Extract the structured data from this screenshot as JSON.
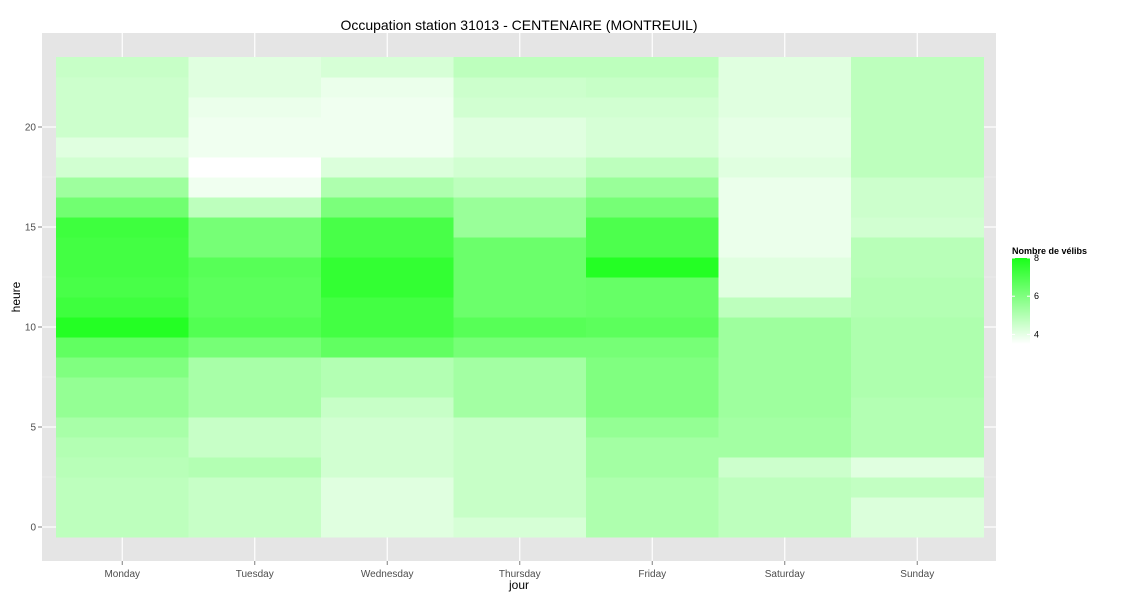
{
  "chart_data": {
    "type": "heatmap",
    "title": "Occupation station 31013 - CENTENAIRE (MONTREUIL)",
    "xlabel": "jour",
    "ylabel": "heure",
    "categories": [
      "Monday",
      "Tuesday",
      "Wednesday",
      "Thursday",
      "Friday",
      "Saturday",
      "Sunday"
    ],
    "hours": [
      0,
      1,
      2,
      3,
      4,
      5,
      6,
      7,
      8,
      9,
      10,
      11,
      12,
      13,
      14,
      15,
      16,
      17,
      18,
      19,
      20,
      21,
      22,
      23
    ],
    "ylim": [
      -0.5,
      23.5
    ],
    "yticks": [
      0,
      5,
      10,
      15,
      20
    ],
    "grid": true,
    "legend": {
      "title": "Nombre de vélibs",
      "position": "right",
      "range": [
        3.5,
        8
      ],
      "ticks": [
        4,
        6,
        8
      ],
      "low_color": "#ffffff",
      "high_color": "#1aff1a"
    },
    "values": {
      "Monday": [
        4.8,
        4.8,
        4.8,
        4.9,
        5.0,
        5.2,
        5.6,
        5.6,
        6.0,
        6.6,
        7.8,
        7.3,
        7.1,
        7.2,
        7.2,
        7.3,
        6.3,
        5.4,
        4.4,
        4.1,
        4.5,
        4.5,
        4.5,
        4.6
      ],
      "Tuesday": [
        4.6,
        4.6,
        4.6,
        5.0,
        4.6,
        4.6,
        5.2,
        5.2,
        5.2,
        6.2,
        6.9,
        6.7,
        6.7,
        6.8,
        6.2,
        6.2,
        4.8,
        3.8,
        3.5,
        3.8,
        3.8,
        3.9,
        4.1,
        4.1
      ],
      "Wednesday": [
        4.1,
        4.1,
        4.1,
        4.4,
        4.4,
        4.4,
        4.6,
        5.0,
        5.0,
        6.6,
        7.2,
        7.2,
        7.5,
        7.5,
        7.1,
        7.1,
        6.1,
        5.1,
        4.2,
        3.8,
        3.8,
        3.8,
        3.9,
        4.3
      ],
      "Thursday": [
        4.3,
        4.6,
        4.6,
        4.6,
        4.6,
        4.6,
        5.3,
        5.3,
        5.3,
        6.2,
        6.8,
        6.4,
        6.4,
        6.4,
        6.4,
        5.5,
        5.5,
        4.8,
        4.4,
        4.1,
        4.1,
        4.4,
        4.5,
        4.8
      ],
      "Friday": [
        5.1,
        5.1,
        5.1,
        5.3,
        5.3,
        5.6,
        6.0,
        6.0,
        6.0,
        6.2,
        6.7,
        6.5,
        6.5,
        7.8,
        7.0,
        7.0,
        6.2,
        5.5,
        4.8,
        4.3,
        4.3,
        4.4,
        4.6,
        4.8
      ],
      "Saturday": [
        4.8,
        4.8,
        4.8,
        4.5,
        5.3,
        5.3,
        5.4,
        5.4,
        5.4,
        5.4,
        5.4,
        4.8,
        4.1,
        4.1,
        3.9,
        3.9,
        3.9,
        3.9,
        4.1,
        4.0,
        4.0,
        4.1,
        4.1,
        4.1
      ],
      "Sunday": [
        4.2,
        4.2,
        4.7,
        4.1,
        5.0,
        5.0,
        5.0,
        5.1,
        5.1,
        5.1,
        5.1,
        5.0,
        5.0,
        4.9,
        4.9,
        4.4,
        4.5,
        4.5,
        4.8,
        4.8,
        4.8,
        4.8,
        4.8,
        4.8
      ]
    }
  }
}
